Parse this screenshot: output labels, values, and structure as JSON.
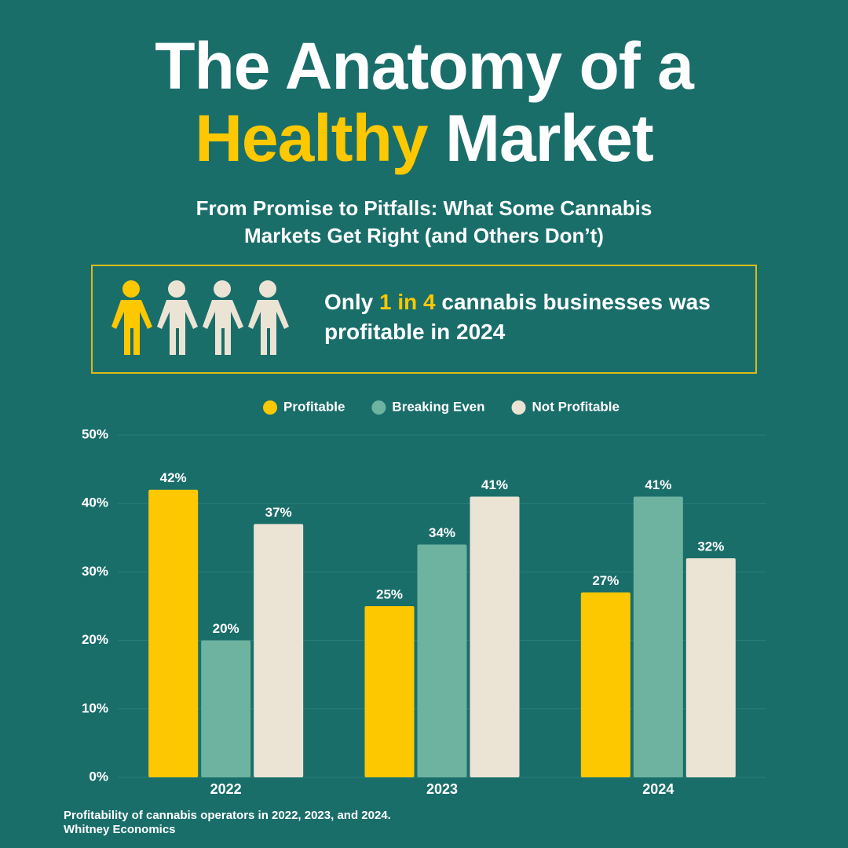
{
  "header": {
    "title_line1": "The Anatomy of a",
    "title_highlight": "Healthy",
    "title_rest": "Market",
    "subtitle_line1": "From Promise to Pitfalls: What Some Cannabis",
    "subtitle_line2": "Markets Get Right (and Others Don’t)"
  },
  "callout": {
    "lead": "Only",
    "highlight": "1 in 4",
    "rest": "cannabis businesses was profitable in 2024"
  },
  "chart_data": {
    "type": "bar",
    "categories": [
      "2022",
      "2023",
      "2024"
    ],
    "series": [
      {
        "name": "Profitable",
        "color": "#fdc800",
        "values": [
          42,
          25,
          27
        ],
        "value_labels": [
          "42%",
          "25%",
          "27%"
        ]
      },
      {
        "name": "Breaking Even",
        "color": "#6db3a0",
        "values": [
          20,
          34,
          41
        ],
        "value_labels": [
          "20%",
          "34%",
          "41%"
        ]
      },
      {
        "name": "Not Profitable",
        "color": "#ebe4d4",
        "values": [
          37,
          41,
          32
        ],
        "value_labels": [
          "37%",
          "41%",
          "32%"
        ]
      }
    ],
    "ylim": [
      0,
      50
    ],
    "yticks": [
      {
        "value": 0,
        "label": "0%"
      },
      {
        "value": 10,
        "label": "10%"
      },
      {
        "value": 20,
        "label": "20%"
      },
      {
        "value": 30,
        "label": "30%"
      },
      {
        "value": 40,
        "label": "40%"
      },
      {
        "value": 50,
        "label": "50%"
      }
    ],
    "grid": true
  },
  "footer": {
    "caption": "Profitability of cannabis operators in 2022, 2023, and 2024.",
    "source": "Whitney Economics"
  }
}
